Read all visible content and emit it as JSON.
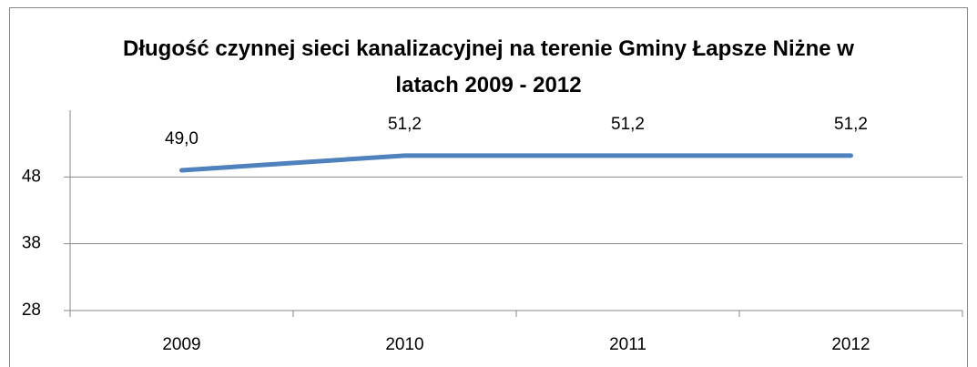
{
  "chart_data": {
    "type": "line",
    "title": "Długość czynnej sieci kanalizacyjnej na terenie Gminy Łapsze Niżne w latach 2009 - 2012",
    "categories": [
      "2009",
      "2010",
      "2011",
      "2012"
    ],
    "series": [
      {
        "name": "Długość czynnej sieci kanalizacyjnej",
        "color": "#4f81bd",
        "values": [
          49.0,
          51.2,
          51.2,
          51.2
        ],
        "value_labels": [
          "49,0",
          "51,2",
          "51,2",
          "51,2"
        ]
      }
    ],
    "ylim": [
      28,
      58
    ],
    "yticks": [
      28,
      38,
      48
    ],
    "grid": true,
    "legend": false
  }
}
